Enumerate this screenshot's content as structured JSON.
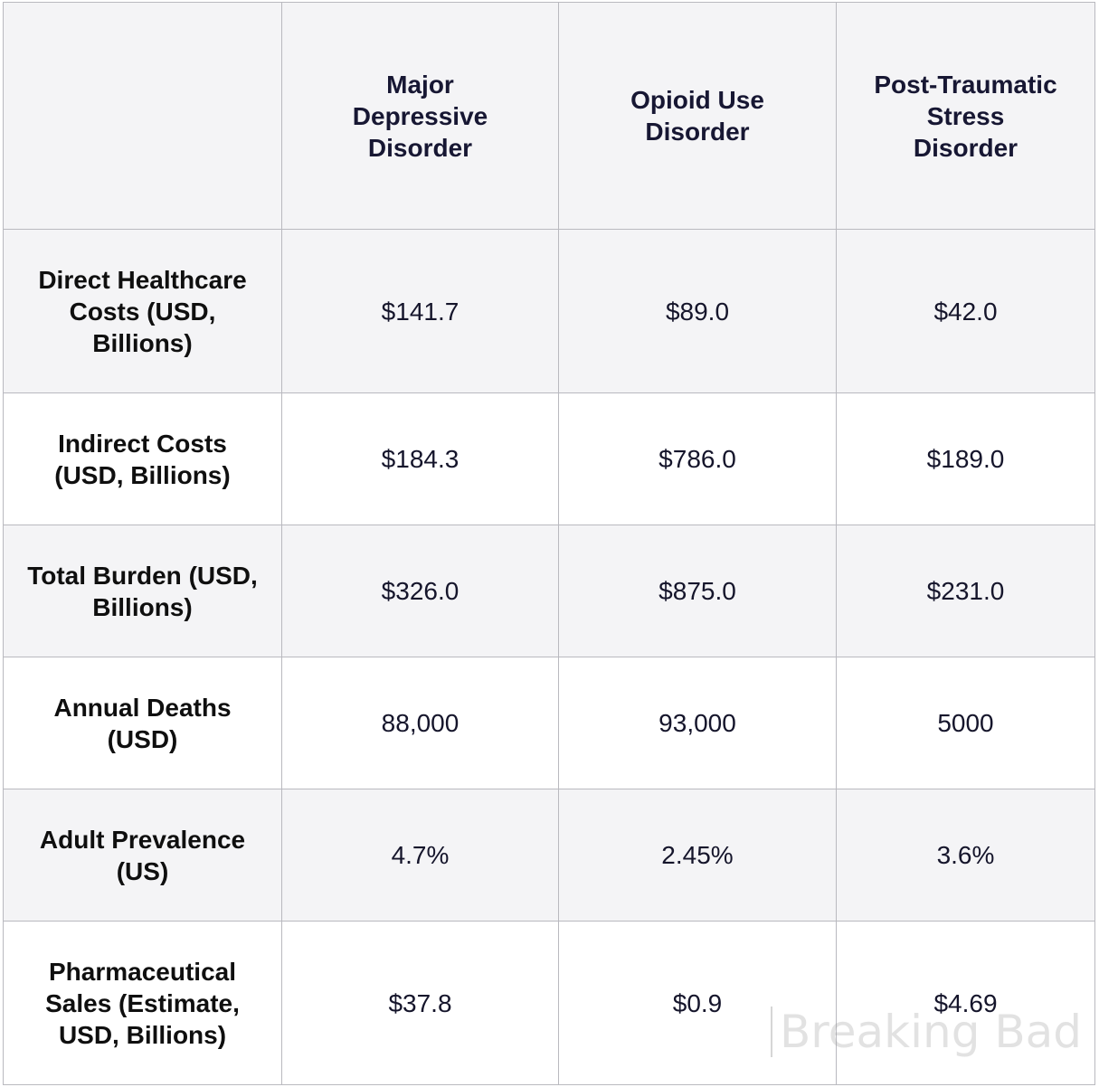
{
  "table": {
    "corner": "",
    "columns": [
      "Major Depressive Disorder",
      "Opioid Use Disorder",
      "Post-Traumatic Stress Disorder"
    ],
    "rows": [
      {
        "label": "Direct Healthcare Costs (USD, Billions)",
        "values": [
          "$141.7",
          "$89.0",
          "$42.0"
        ]
      },
      {
        "label": "Indirect Costs (USD, Billions)",
        "values": [
          "$184.3",
          "$786.0",
          "$189.0"
        ]
      },
      {
        "label": "Total Burden (USD, Billions)",
        "values": [
          "$326.0",
          "$875.0",
          "$231.0"
        ]
      },
      {
        "label": "Annual Deaths (USD)",
        "values": [
          "88,000",
          "93,000",
          "5000"
        ]
      },
      {
        "label": "Adult Prevalence (US)",
        "values": [
          "4.7%",
          "2.45%",
          "3.6%"
        ]
      },
      {
        "label": "Pharmaceutical Sales (Estimate, USD, Billions)",
        "values": [
          "$37.8",
          "$0.9",
          "$4.69"
        ]
      }
    ]
  },
  "watermark": "Breaking Bad",
  "colors": {
    "header_bg": "#f4f4f6",
    "border": "#b9b9bf",
    "text": "#15152b"
  }
}
